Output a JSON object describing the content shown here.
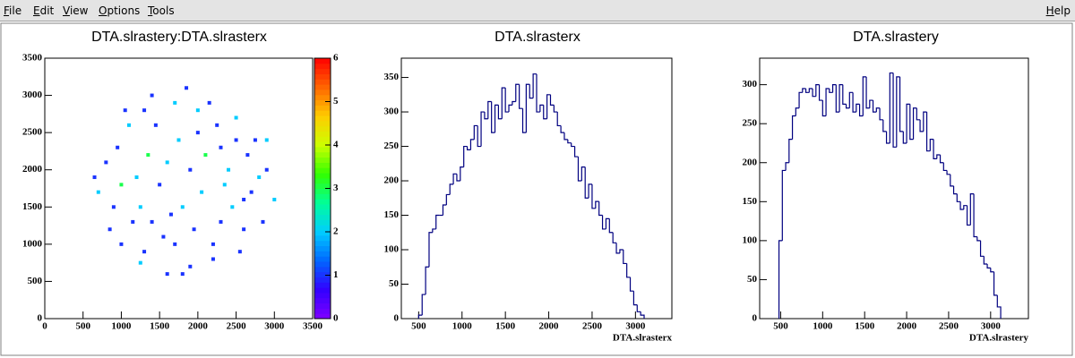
{
  "menu": {
    "items": [
      "File",
      "Edit",
      "View",
      "Options",
      "Tools"
    ],
    "help": "Help"
  },
  "chart_data": [
    {
      "type": "scatter",
      "title": "DTA.slrastery:DTA.slrasterx",
      "x": [
        900,
        1100,
        1300,
        1500,
        1700,
        1900,
        2100,
        2300,
        2500,
        2700,
        800,
        1000,
        1200,
        1400,
        1600,
        1800,
        2000,
        2200,
        2400,
        2600,
        2900,
        700,
        950,
        1150,
        1350,
        1550,
        1750,
        1950,
        2150,
        2350,
        2550,
        2750,
        3000,
        850,
        1050,
        1250,
        1450,
        1650,
        1850,
        2050,
        2250,
        2450,
        2650,
        2850,
        1250,
        1300,
        1600,
        1900,
        2200,
        2500,
        2800,
        650,
        1000,
        1400,
        1700,
        2000,
        2300,
        2600,
        2900,
        1800
      ],
      "y": [
        1500,
        2600,
        900,
        1800,
        2900,
        700,
        2200,
        1300,
        2700,
        1700,
        2100,
        1000,
        1900,
        3000,
        600,
        1500,
        2500,
        800,
        2000,
        1200,
        2000,
        1700,
        2300,
        1300,
        2200,
        1100,
        2400,
        1200,
        2900,
        1800,
        900,
        2400,
        1600,
        1200,
        2800,
        1500,
        2600,
        1400,
        3100,
        1700,
        2600,
        1500,
        2200,
        1300,
        750,
        2800,
        2100,
        2000,
        1000,
        2400,
        1900,
        1900,
        1800,
        1300,
        1000,
        2800,
        2300,
        1600,
        2400,
        600
      ],
      "z": [
        1,
        2,
        1,
        1,
        2,
        1,
        3,
        1,
        2,
        1,
        1,
        1,
        2,
        1,
        1,
        2,
        1,
        1,
        2,
        1,
        1,
        2,
        1,
        1,
        3,
        1,
        2,
        1,
        1,
        2,
        1,
        1,
        2,
        1,
        1,
        2,
        1,
        1,
        1,
        2,
        1,
        2,
        1,
        1,
        2,
        1,
        2,
        1,
        1,
        1,
        2,
        1,
        3,
        1,
        1,
        2,
        1,
        1,
        2,
        1
      ],
      "xlim": [
        0,
        3500
      ],
      "xticks": [
        0,
        500,
        1000,
        1500,
        2000,
        2500,
        3000,
        3500
      ],
      "ylim": [
        0,
        3500
      ],
      "yticks": [
        0,
        500,
        1000,
        1500,
        2000,
        2500,
        3000,
        3500
      ],
      "zlim": [
        0,
        6
      ],
      "zticks": [
        0,
        1,
        2,
        3,
        4,
        5,
        6
      ],
      "palette": [
        "#7f00ff",
        "#3300ff",
        "#0066ff",
        "#00ccff",
        "#00ff99",
        "#33ff00",
        "#ccff00",
        "#ffcc00",
        "#ff6600",
        "#ff0000"
      ]
    },
    {
      "type": "histogram",
      "title": "DTA.slrasterx",
      "xlabel": "DTA.slrasterx",
      "color": "#000080",
      "bins": [
        500,
        540,
        580,
        620,
        660,
        700,
        740,
        780,
        820,
        860,
        900,
        940,
        980,
        1020,
        1060,
        1100,
        1140,
        1180,
        1220,
        1260,
        1300,
        1340,
        1380,
        1420,
        1460,
        1500,
        1540,
        1580,
        1620,
        1660,
        1700,
        1740,
        1780,
        1820,
        1860,
        1900,
        1940,
        1980,
        2020,
        2060,
        2100,
        2140,
        2180,
        2220,
        2260,
        2300,
        2340,
        2380,
        2420,
        2460,
        2500,
        2540,
        2580,
        2620,
        2660,
        2700,
        2740,
        2780,
        2820,
        2860,
        2900,
        2940,
        2980,
        3020,
        3060,
        3100
      ],
      "values": [
        5,
        35,
        75,
        125,
        130,
        150,
        150,
        165,
        180,
        195,
        210,
        200,
        220,
        250,
        245,
        260,
        280,
        250,
        300,
        290,
        315,
        270,
        310,
        290,
        335,
        300,
        310,
        315,
        340,
        305,
        270,
        340,
        320,
        355,
        300,
        310,
        290,
        325,
        310,
        300,
        280,
        270,
        260,
        255,
        250,
        235,
        200,
        220,
        175,
        195,
        160,
        170,
        150,
        130,
        145,
        125,
        110,
        95,
        100,
        80,
        60,
        40,
        20,
        10,
        5
      ],
      "xlim": [
        300,
        3420
      ],
      "xticks": [
        500,
        1000,
        1500,
        2000,
        2500,
        3000
      ],
      "ylim": [
        0,
        378
      ],
      "yticks": [
        0,
        50,
        100,
        150,
        200,
        250,
        300,
        350
      ]
    },
    {
      "type": "histogram",
      "title": "DTA.slrastery",
      "xlabel": "DTA.slrastery",
      "color": "#000080",
      "bins": [
        480,
        520,
        560,
        600,
        640,
        680,
        720,
        760,
        800,
        840,
        880,
        920,
        960,
        1000,
        1040,
        1080,
        1120,
        1160,
        1200,
        1240,
        1280,
        1320,
        1360,
        1400,
        1440,
        1480,
        1520,
        1560,
        1600,
        1640,
        1680,
        1720,
        1760,
        1800,
        1840,
        1880,
        1920,
        1960,
        2000,
        2040,
        2080,
        2120,
        2160,
        2200,
        2240,
        2280,
        2320,
        2360,
        2400,
        2440,
        2480,
        2520,
        2560,
        2600,
        2640,
        2680,
        2720,
        2760,
        2800,
        2840,
        2880,
        2920,
        2960,
        3000,
        3040,
        3080,
        3120
      ],
      "values": [
        100,
        190,
        200,
        230,
        260,
        270,
        290,
        295,
        290,
        295,
        285,
        300,
        280,
        260,
        295,
        290,
        300,
        265,
        300,
        275,
        270,
        290,
        265,
        275,
        260,
        310,
        270,
        280,
        265,
        270,
        255,
        240,
        225,
        315,
        220,
        310,
        240,
        225,
        275,
        230,
        270,
        255,
        240,
        265,
        215,
        230,
        205,
        210,
        200,
        190,
        185,
        170,
        160,
        150,
        140,
        145,
        120,
        160,
        105,
        100,
        80,
        70,
        65,
        60,
        30,
        15
      ],
      "xlim": [
        250,
        3450
      ],
      "xticks": [
        500,
        1000,
        1500,
        2000,
        2500,
        3000
      ],
      "ylim": [
        0,
        334
      ],
      "yticks": [
        0,
        50,
        100,
        150,
        200,
        250,
        300
      ]
    }
  ]
}
